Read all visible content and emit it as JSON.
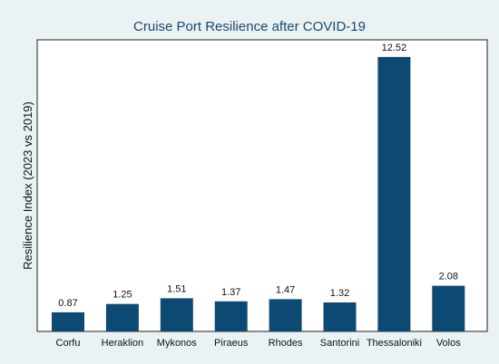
{
  "chart_data": {
    "type": "bar",
    "title": "Cruise Port Resilience after COVID-19",
    "xlabel": "",
    "ylabel": "Resilience Index (2023 vs 2019)",
    "categories": [
      "Corfu",
      "Heraklion",
      "Mykonos",
      "Piraeus",
      "Rhodes",
      "Santorini",
      "Thessaloniki",
      "Volos"
    ],
    "values": [
      0.87,
      1.25,
      1.51,
      1.37,
      1.47,
      1.32,
      12.52,
      2.08
    ],
    "value_labels": [
      "0.87",
      "1.25",
      "1.51",
      "1.37",
      "1.47",
      "1.32",
      "12.52",
      "2.08"
    ],
    "ylim": [
      0,
      13.3
    ],
    "grid": false,
    "bar_color": "#0d4a73",
    "background_color": "#eaf2f3",
    "plot_background_color": "#ffffff"
  }
}
